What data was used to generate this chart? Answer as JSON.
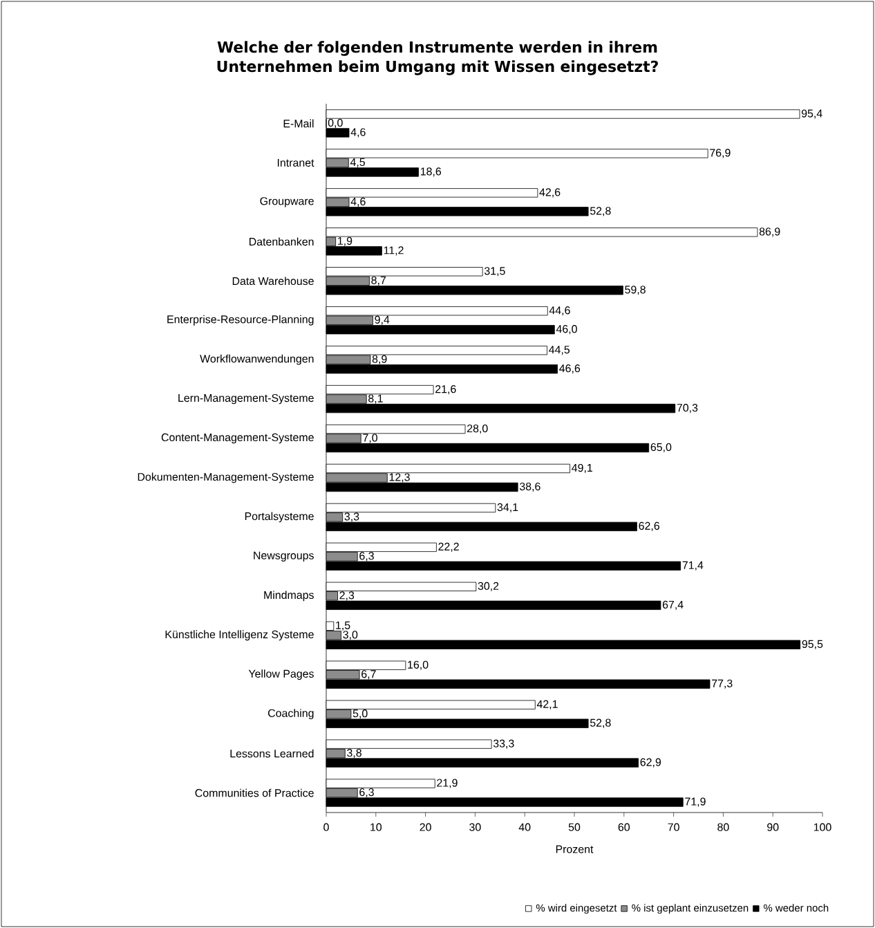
{
  "chart_data": {
    "type": "bar",
    "orientation": "horizontal",
    "title": "Welche der folgenden Instrumente werden in ihrem Unternehmen beim Umgang mit Wissen eingesetzt?",
    "xlabel": "Prozent",
    "categories": [
      "E-Mail",
      "Intranet",
      "Groupware",
      "Datenbanken",
      "Data Warehouse",
      "Enterprise-Resource-Planning",
      "Workflowanwendungen",
      "Lern-Management-Systeme",
      "Content-Management-Systeme",
      "Dokumenten-Management-Systeme",
      "Portalsysteme",
      "Newsgroups",
      "Mindmaps",
      "Künstliche Intelligenz Systeme",
      "Yellow Pages",
      "Coaching",
      "Lessons Learned",
      "Communities of Practice"
    ],
    "series": [
      {
        "name": "% wird eingesetzt",
        "color": "#ffffff",
        "values": [
          95.4,
          76.9,
          42.6,
          86.9,
          31.5,
          44.6,
          44.5,
          21.6,
          28.0,
          49.1,
          34.1,
          22.2,
          30.2,
          1.5,
          16.0,
          42.1,
          33.3,
          21.9
        ],
        "value_labels": [
          "95,4",
          "76,9",
          "42,6",
          "86,9",
          "31,5",
          "44,6",
          "44,5",
          "21,6",
          "28,0",
          "49,1",
          "34,1",
          "22,2",
          "30,2",
          "1,5",
          "16,0",
          "42,1",
          "33,3",
          "21,9"
        ]
      },
      {
        "name": "% ist geplant einzusetzen",
        "color": "#8c8c8c",
        "values": [
          0.0,
          4.5,
          4.6,
          1.9,
          8.7,
          9.4,
          8.9,
          8.1,
          7.0,
          12.3,
          3.3,
          6.3,
          2.3,
          3.0,
          6.7,
          5.0,
          3.8,
          6.3
        ],
        "value_labels": [
          "0,0",
          "4,5",
          "4,6",
          "1,9",
          "8,7",
          "9,4",
          "8,9",
          "8,1",
          "7,0",
          "12,3",
          "3,3",
          "6,3",
          "2,3",
          "3,0",
          "6,7",
          "5,0",
          "3,8",
          "6,3"
        ]
      },
      {
        "name": "% weder noch",
        "color": "#000000",
        "values": [
          4.6,
          18.6,
          52.8,
          11.2,
          59.8,
          46.0,
          46.6,
          70.3,
          65.0,
          38.6,
          62.6,
          71.4,
          67.4,
          95.5,
          77.3,
          52.8,
          62.9,
          71.9
        ],
        "value_labels": [
          "4,6",
          "18,6",
          "52,8",
          "11,2",
          "59,8",
          "46,0",
          "46,6",
          "70,3",
          "65,0",
          "38,6",
          "62,6",
          "71,4",
          "67,4",
          "95,5",
          "77,3",
          "52,8",
          "62,9",
          "71,9"
        ]
      }
    ],
    "xlim": [
      0,
      100
    ],
    "xticks": [
      0,
      10,
      20,
      30,
      40,
      50,
      60,
      70,
      80,
      90,
      100
    ],
    "grid": false,
    "legend": "bottom right"
  }
}
